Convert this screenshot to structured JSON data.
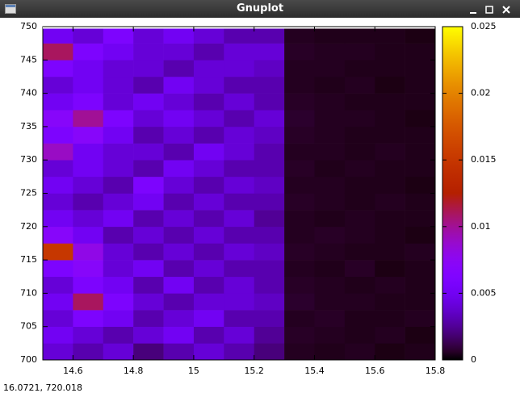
{
  "window": {
    "title": "Gnuplot"
  },
  "status": "16.0721,  720.018",
  "chart_data": {
    "type": "heatmap",
    "x": [
      14.55,
      14.65,
      14.75,
      14.85,
      14.95,
      15.05,
      15.15,
      15.25,
      15.35,
      15.45,
      15.55,
      15.65,
      15.75
    ],
    "y": [
      701.25,
      703.75,
      706.25,
      708.75,
      711.25,
      713.75,
      716.25,
      718.75,
      721.25,
      723.75,
      726.25,
      728.75,
      731.25,
      733.75,
      736.25,
      738.75,
      741.25,
      743.75,
      746.25,
      748.75
    ],
    "values": [
      [
        0.004,
        0.003,
        0.004,
        0.002,
        0.003,
        0.004,
        0.003,
        0.002,
        0.0005,
        0.0004,
        0.0005,
        0.0003,
        0.0004
      ],
      [
        0.005,
        0.004,
        0.003,
        0.004,
        0.005,
        0.003,
        0.004,
        0.0025,
        0.0006,
        0.0005,
        0.0004,
        0.0005,
        0.0003
      ],
      [
        0.004,
        0.006,
        0.005,
        0.003,
        0.004,
        0.005,
        0.003,
        0.003,
        0.0005,
        0.0006,
        0.0004,
        0.0004,
        0.0005
      ],
      [
        0.005,
        0.011,
        0.006,
        0.004,
        0.003,
        0.004,
        0.004,
        0.0035,
        0.0007,
        0.0005,
        0.0005,
        0.0004,
        0.0004
      ],
      [
        0.004,
        0.006,
        0.005,
        0.003,
        0.005,
        0.003,
        0.004,
        0.003,
        0.0006,
        0.0005,
        0.0004,
        0.0005,
        0.0004
      ],
      [
        0.006,
        0.007,
        0.004,
        0.005,
        0.003,
        0.004,
        0.003,
        0.003,
        0.0005,
        0.0004,
        0.0006,
        0.0003,
        0.0004
      ],
      [
        0.015,
        0.008,
        0.004,
        0.003,
        0.004,
        0.003,
        0.004,
        0.0035,
        0.0006,
        0.0005,
        0.0004,
        0.0004,
        0.0005
      ],
      [
        0.007,
        0.005,
        0.003,
        0.004,
        0.003,
        0.004,
        0.003,
        0.003,
        0.0005,
        0.0006,
        0.0005,
        0.0004,
        0.0003
      ],
      [
        0.005,
        0.004,
        0.005,
        0.003,
        0.004,
        0.003,
        0.004,
        0.0025,
        0.0005,
        0.0004,
        0.0005,
        0.0004,
        0.0004
      ],
      [
        0.004,
        0.003,
        0.004,
        0.005,
        0.003,
        0.004,
        0.003,
        0.003,
        0.0006,
        0.0005,
        0.0004,
        0.0005,
        0.0004
      ],
      [
        0.005,
        0.004,
        0.003,
        0.006,
        0.004,
        0.003,
        0.004,
        0.0035,
        0.0005,
        0.0005,
        0.0004,
        0.0004,
        0.0003
      ],
      [
        0.004,
        0.005,
        0.004,
        0.003,
        0.005,
        0.004,
        0.003,
        0.003,
        0.0006,
        0.0004,
        0.0005,
        0.0004,
        0.0004
      ],
      [
        0.009,
        0.005,
        0.004,
        0.004,
        0.003,
        0.005,
        0.004,
        0.003,
        0.0005,
        0.0005,
        0.0004,
        0.0005,
        0.0004
      ],
      [
        0.006,
        0.007,
        0.005,
        0.003,
        0.004,
        0.003,
        0.004,
        0.0035,
        0.0006,
        0.0005,
        0.0004,
        0.0004,
        0.0004
      ],
      [
        0.007,
        0.01,
        0.006,
        0.004,
        0.005,
        0.004,
        0.003,
        0.004,
        0.0007,
        0.0005,
        0.0005,
        0.0004,
        0.0003
      ],
      [
        0.005,
        0.006,
        0.004,
        0.005,
        0.004,
        0.003,
        0.004,
        0.003,
        0.0006,
        0.0005,
        0.0004,
        0.0004,
        0.0004
      ],
      [
        0.004,
        0.005,
        0.004,
        0.003,
        0.005,
        0.004,
        0.003,
        0.003,
        0.0005,
        0.0004,
        0.0005,
        0.0003,
        0.0004
      ],
      [
        0.006,
        0.005,
        0.004,
        0.004,
        0.003,
        0.004,
        0.004,
        0.0035,
        0.0005,
        0.0005,
        0.0004,
        0.0004,
        0.0004
      ],
      [
        0.011,
        0.006,
        0.005,
        0.004,
        0.004,
        0.003,
        0.004,
        0.004,
        0.0006,
        0.0005,
        0.0005,
        0.0004,
        0.0004
      ],
      [
        0.005,
        0.004,
        0.006,
        0.004,
        0.005,
        0.004,
        0.003,
        0.003,
        0.0005,
        0.0004,
        0.0004,
        0.0004,
        0.0003
      ]
    ],
    "xlim": [
      14.5,
      15.8
    ],
    "ylim": [
      700,
      750
    ],
    "xticks": [
      14.6,
      14.8,
      15,
      15.2,
      15.4,
      15.6,
      15.8
    ],
    "yticks": [
      700,
      705,
      710,
      715,
      720,
      725,
      730,
      735,
      740,
      745,
      750
    ],
    "clim": [
      0,
      0.025
    ],
    "cticks": [
      0,
      0.005,
      0.01,
      0.015,
      0.02,
      0.025
    ]
  }
}
